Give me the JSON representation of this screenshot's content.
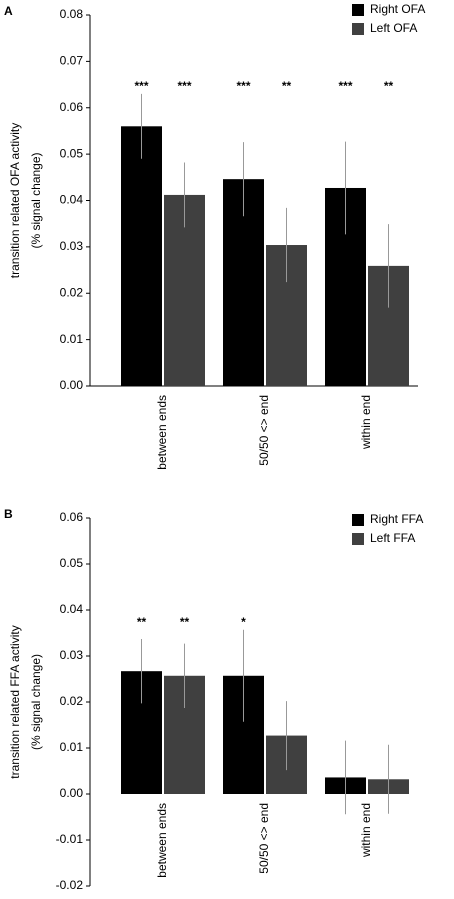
{
  "chart_data": [
    {
      "type": "bar",
      "panel_label": "A",
      "ylabel": [
        "transition related OFA activity",
        "(% signal change)"
      ],
      "categories": [
        "between ends",
        "50/50 <> end",
        "within end"
      ],
      "series": [
        {
          "name": "Right OFA",
          "color": "#000000",
          "values": [
            0.056,
            0.0446,
            0.0427
          ],
          "errors": [
            0.007,
            0.008,
            0.01
          ],
          "annotations": [
            "***",
            "***",
            "***"
          ]
        },
        {
          "name": "Left OFA",
          "color": "#404040",
          "values": [
            0.0412,
            0.0304,
            0.0259
          ],
          "errors": [
            0.007,
            0.008,
            0.009
          ],
          "annotations": [
            "***",
            "**",
            "**"
          ]
        }
      ],
      "ylim": [
        0,
        0.08
      ],
      "yticks": [
        {
          "value": 0,
          "label": "0.00"
        },
        0.01,
        0.02,
        0.03,
        0.04,
        0.05,
        0.06,
        0.07,
        0.08
      ]
    },
    {
      "type": "bar",
      "panel_label": "B",
      "ylabel": [
        "transition related FFA activity",
        "(% signal change)"
      ],
      "categories": [
        "between ends",
        "50/50 <> end",
        "within end"
      ],
      "series": [
        {
          "name": "Right FFA",
          "color": "#000000",
          "values": [
            0.0267,
            0.0257,
            0.0036
          ],
          "errors": [
            0.007,
            0.01,
            0.008
          ],
          "annotations": [
            "**",
            "*",
            null
          ]
        },
        {
          "name": "Left FFA",
          "color": "#404040",
          "values": [
            0.0257,
            0.0127,
            0.0032
          ],
          "errors": [
            0.007,
            0.0075,
            0.0075
          ],
          "annotations": [
            "**",
            null,
            null
          ]
        }
      ],
      "ylim": [
        -0.02,
        0.06
      ],
      "yticks": [
        -0.02,
        -0.01,
        {
          "value": 0,
          "label": "0.00"
        },
        0.01,
        0.02,
        0.03,
        0.04,
        0.05,
        0.06
      ]
    }
  ]
}
